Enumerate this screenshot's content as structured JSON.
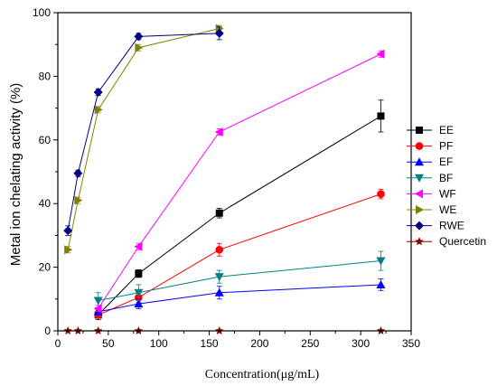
{
  "chart_data": {
    "type": "line",
    "xlabel": "Concentration(μg/mL)",
    "ylabel": "Metal ion chelating activity (%)",
    "xlim": [
      0,
      350
    ],
    "ylim": [
      0,
      100
    ],
    "x_ticks": [
      "0",
      "50",
      "100",
      "150",
      "200",
      "250",
      "300",
      "350"
    ],
    "y_ticks": [
      "0",
      "20",
      "40",
      "60",
      "80",
      "100"
    ],
    "grid": false,
    "legend_position": "right",
    "series": [
      {
        "name": "EE",
        "color": "#000000",
        "marker": "square",
        "points": [
          {
            "x": 40,
            "y": 5
          },
          {
            "x": 80,
            "y": 18
          },
          {
            "x": 160,
            "y": 37
          },
          {
            "x": 320,
            "y": 67.5
          }
        ],
        "errors": [
          1.5,
          1.2,
          1.5,
          5
        ]
      },
      {
        "name": "PF",
        "color": "#ff0000",
        "marker": "circle",
        "points": [
          {
            "x": 40,
            "y": 5
          },
          {
            "x": 80,
            "y": 10.5
          },
          {
            "x": 160,
            "y": 25.5
          },
          {
            "x": 320,
            "y": 43
          }
        ],
        "errors": [
          1,
          1.5,
          2,
          1.5
        ]
      },
      {
        "name": "EF",
        "color": "#0000ff",
        "marker": "triangle-up",
        "points": [
          {
            "x": 40,
            "y": 6
          },
          {
            "x": 80,
            "y": 8.5
          },
          {
            "x": 160,
            "y": 12
          },
          {
            "x": 320,
            "y": 14.5
          }
        ],
        "errors": [
          1,
          1.5,
          2,
          1.8
        ]
      },
      {
        "name": "BF",
        "color": "#008080",
        "marker": "triangle-down",
        "points": [
          {
            "x": 40,
            "y": 9.5
          },
          {
            "x": 80,
            "y": 12
          },
          {
            "x": 160,
            "y": 17
          },
          {
            "x": 320,
            "y": 22
          }
        ],
        "errors": [
          2.5,
          2.5,
          2,
          3
        ]
      },
      {
        "name": "WF",
        "color": "#ff00ff",
        "marker": "triangle-left",
        "points": [
          {
            "x": 40,
            "y": 7
          },
          {
            "x": 80,
            "y": 26.5
          },
          {
            "x": 160,
            "y": 62.5
          },
          {
            "x": 320,
            "y": 87
          }
        ],
        "errors": [
          1,
          1,
          1,
          1
        ]
      },
      {
        "name": "WE",
        "color": "#808000",
        "marker": "triangle-right",
        "points": [
          {
            "x": 10,
            "y": 25.5
          },
          {
            "x": 20,
            "y": 41
          },
          {
            "x": 40,
            "y": 69.5
          },
          {
            "x": 80,
            "y": 89
          },
          {
            "x": 160,
            "y": 95
          }
        ],
        "errors": [
          1,
          1,
          1,
          1,
          1
        ]
      },
      {
        "name": "RWE",
        "color": "#000080",
        "marker": "diamond",
        "points": [
          {
            "x": 10,
            "y": 31.5
          },
          {
            "x": 20,
            "y": 49.5
          },
          {
            "x": 40,
            "y": 75
          },
          {
            "x": 80,
            "y": 92.5
          },
          {
            "x": 160,
            "y": 93.5
          }
        ],
        "errors": [
          1.5,
          1,
          1,
          1,
          2
        ]
      },
      {
        "name": "Quercetin",
        "color": "#800000",
        "marker": "star",
        "points": [
          {
            "x": 10,
            "y": 0
          },
          {
            "x": 20,
            "y": 0
          },
          {
            "x": 40,
            "y": 0
          },
          {
            "x": 80,
            "y": 0
          },
          {
            "x": 160,
            "y": 0
          },
          {
            "x": 320,
            "y": 0
          }
        ],
        "errors": [
          0,
          0,
          0,
          0,
          0,
          0
        ]
      }
    ]
  }
}
